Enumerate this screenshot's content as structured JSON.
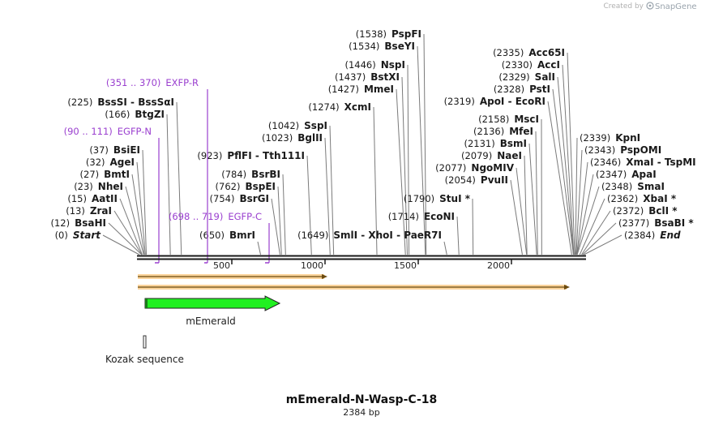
{
  "brand": {
    "prefix": "Created by",
    "name": "SnapGene"
  },
  "plasmid": {
    "name": "mEmerald-N-Wasp-C-18",
    "length": "2384 bp"
  },
  "ticks": [
    {
      "label": "500",
      "bp": 500
    },
    {
      "label": "1000",
      "bp": 1000
    },
    {
      "label": "1500",
      "bp": 1500
    },
    {
      "label": "2000",
      "bp": 2000
    }
  ],
  "sites": [
    {
      "pos": "(0)",
      "name": "Start",
      "bp": 0,
      "italic": true
    },
    {
      "pos": "(12)",
      "name": "BsaHI",
      "bp": 12
    },
    {
      "pos": "(13)",
      "name": "ZraI",
      "bp": 13
    },
    {
      "pos": "(15)",
      "name": "AatII",
      "bp": 15
    },
    {
      "pos": "(23)",
      "name": "NheI",
      "bp": 23
    },
    {
      "pos": "(27)",
      "name": "BmtI",
      "bp": 27
    },
    {
      "pos": "(32)",
      "name": "AgeI",
      "bp": 32
    },
    {
      "pos": "(37)",
      "name": "BsiEI",
      "bp": 37
    },
    {
      "pos": "(166)",
      "name": "BtgZI",
      "bp": 166
    },
    {
      "pos": "(225)",
      "name": "BssSI  -  BssSαI",
      "bp": 225
    },
    {
      "pos": "(650)",
      "name": "BmrI",
      "bp": 650
    },
    {
      "pos": "(754)",
      "name": "BsrGI",
      "bp": 754
    },
    {
      "pos": "(762)",
      "name": "BspEI",
      "bp": 762
    },
    {
      "pos": "(784)",
      "name": "BsrBI",
      "bp": 784
    },
    {
      "pos": "(923)",
      "name": "PflFI  -  Tth111I",
      "bp": 923
    },
    {
      "pos": "(1023)",
      "name": "BglII",
      "bp": 1023
    },
    {
      "pos": "(1042)",
      "name": "SspI",
      "bp": 1042
    },
    {
      "pos": "(1274)",
      "name": "XcmI",
      "bp": 1274
    },
    {
      "pos": "(1427)",
      "name": "MmeI",
      "bp": 1427
    },
    {
      "pos": "(1437)",
      "name": "BstXI",
      "bp": 1437
    },
    {
      "pos": "(1446)",
      "name": "NspI",
      "bp": 1446
    },
    {
      "pos": "(1534)",
      "name": "BseYI",
      "bp": 1534
    },
    {
      "pos": "(1538)",
      "name": "PspFI",
      "bp": 1538
    },
    {
      "pos": "(1649)",
      "name": "SmlI   -  XhoI   -  PaeR7I",
      "bp": 1649
    },
    {
      "pos": "(1714)",
      "name": "EcoNI",
      "bp": 1714
    },
    {
      "pos": "(1790)",
      "name": "StuI *",
      "bp": 1790
    },
    {
      "pos": "(2054)",
      "name": "PvuII",
      "bp": 2054
    },
    {
      "pos": "(2077)",
      "name": "NgoMIV",
      "bp": 2077
    },
    {
      "pos": "(2079)",
      "name": "NaeI",
      "bp": 2079
    },
    {
      "pos": "(2131)",
      "name": "BsmI",
      "bp": 2131
    },
    {
      "pos": "(2136)",
      "name": "MfeI",
      "bp": 2136
    },
    {
      "pos": "(2158)",
      "name": "MscI",
      "bp": 2158
    },
    {
      "pos": "(2319)",
      "name": "ApoI  -  EcoRI",
      "bp": 2319
    },
    {
      "pos": "(2328)",
      "name": "PstI",
      "bp": 2328
    },
    {
      "pos": "(2329)",
      "name": "SalI",
      "bp": 2329
    },
    {
      "pos": "(2330)",
      "name": "AccI",
      "bp": 2330
    },
    {
      "pos": "(2335)",
      "name": "Acc65I",
      "bp": 2335
    },
    {
      "pos": "(2339)",
      "name": "KpnI",
      "bp": 2339
    },
    {
      "pos": "(2343)",
      "name": "PspOMI",
      "bp": 2343
    },
    {
      "pos": "(2346)",
      "name": "XmaI  -  TspMI",
      "bp": 2346
    },
    {
      "pos": "(2347)",
      "name": "ApaI",
      "bp": 2347
    },
    {
      "pos": "(2348)",
      "name": "SmaI",
      "bp": 2348
    },
    {
      "pos": "(2362)",
      "name": "XbaI *",
      "bp": 2362
    },
    {
      "pos": "(2372)",
      "name": "BclI *",
      "bp": 2372
    },
    {
      "pos": "(2377)",
      "name": "BsaBI *",
      "bp": 2377
    },
    {
      "pos": "(2384)",
      "name": "End",
      "bp": 2384,
      "italic": true
    }
  ],
  "primers": [
    {
      "range": "(351 .. 370)",
      "name": "EXFP-R",
      "start": 351,
      "end": 370
    },
    {
      "range": "(90 .. 111)",
      "name": "EGFP-N",
      "start": 90,
      "end": 111
    },
    {
      "range": "(698 .. 719)",
      "name": "EGFP-C",
      "start": 698,
      "end": 719
    }
  ],
  "features": [
    {
      "name": "mEmerald",
      "start": 37,
      "end": 759,
      "color": "#21f021",
      "type": "cds"
    },
    {
      "name": "Kozak sequence",
      "start": 26,
      "end": 36,
      "color": "#888888",
      "type": "regulatory"
    }
  ],
  "orfs": [
    {
      "start": 0,
      "end": 1000
    },
    {
      "start": 0,
      "end": 2300
    }
  ],
  "colors": {
    "primer": "#9a3fcf",
    "orf": "#f7b04a",
    "backbone": "#1a1a1a"
  }
}
